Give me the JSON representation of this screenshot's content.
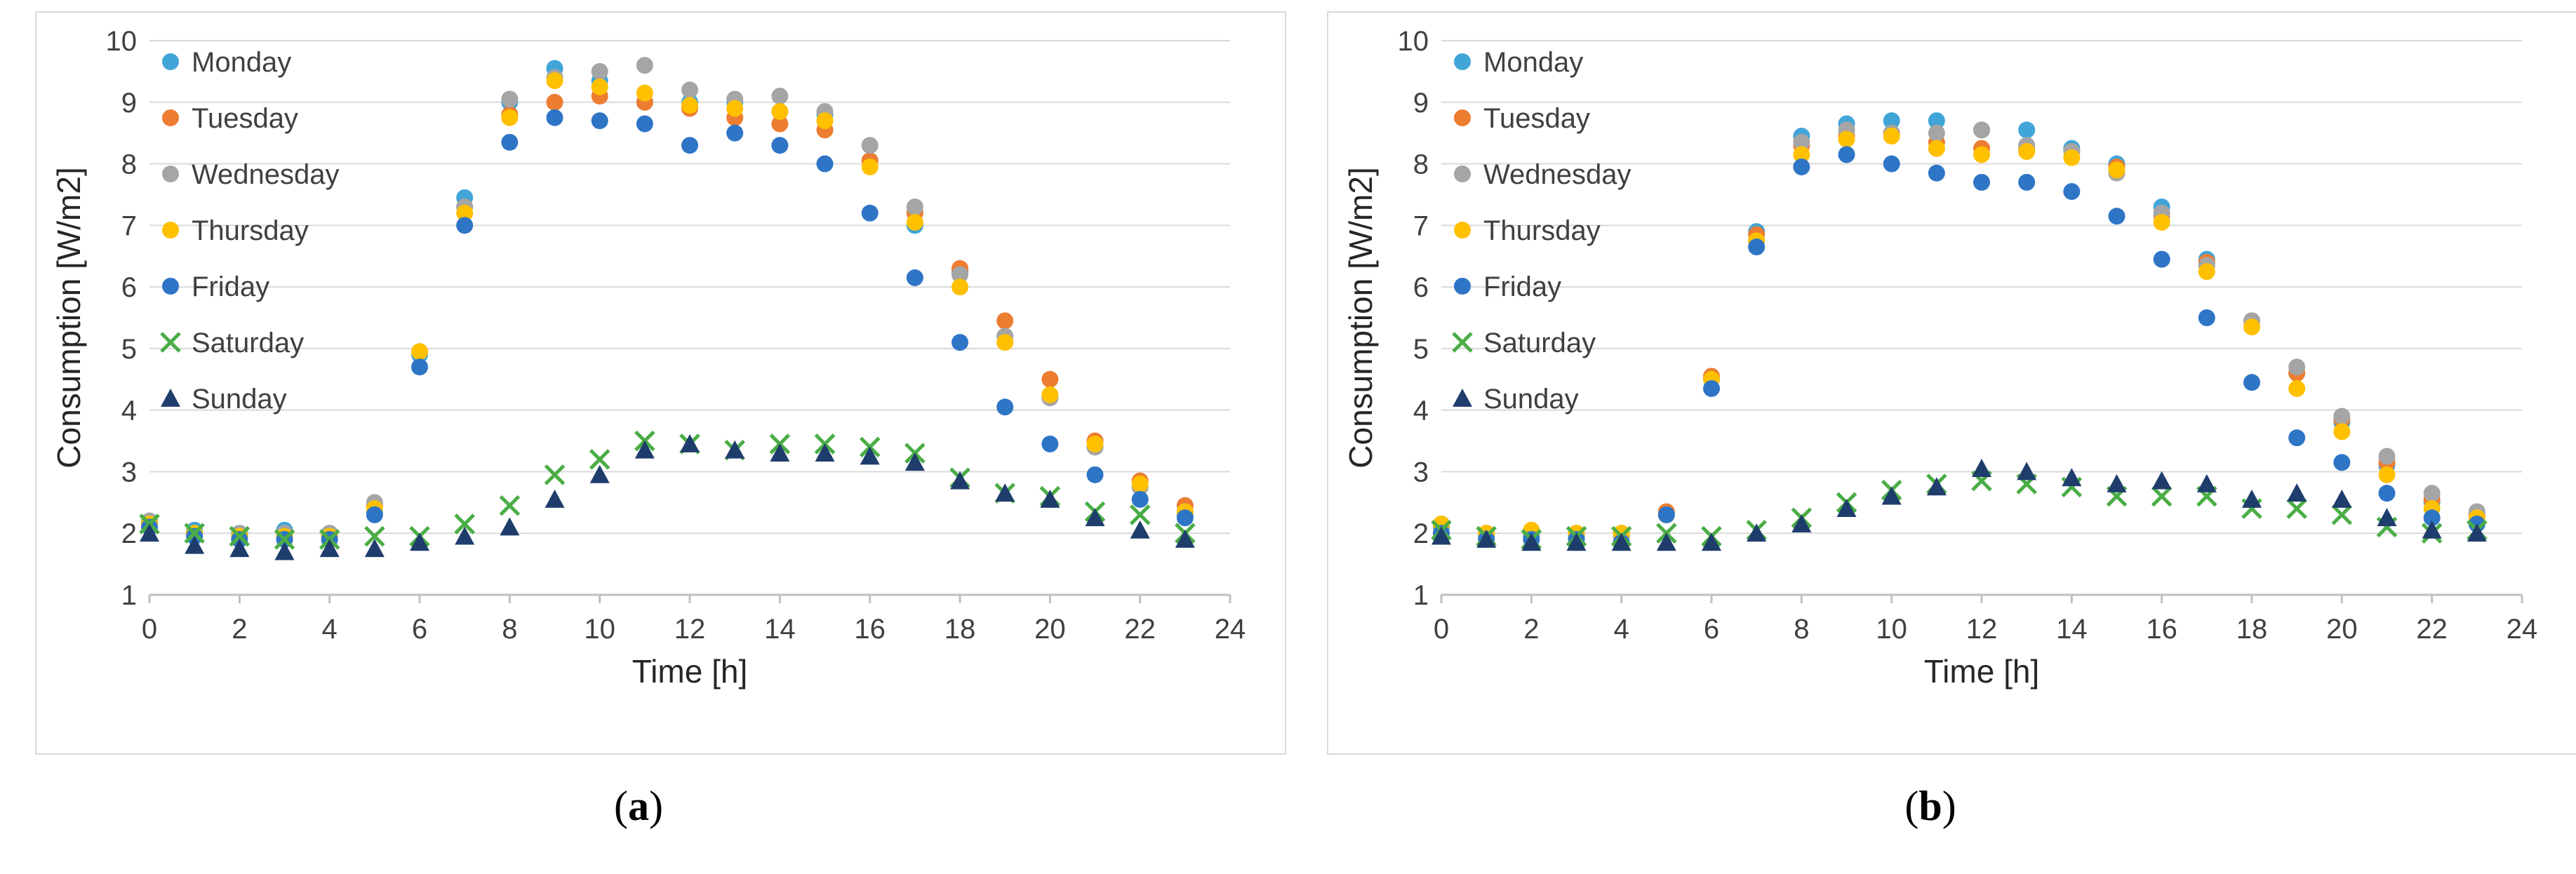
{
  "colors": {
    "Monday": "#41a5d8",
    "Tuesday": "#ed7d31",
    "Wednesday": "#a5a5a5",
    "Thursday": "#ffc000",
    "Friday": "#2e75c6",
    "Saturday": "#4aad45",
    "Sunday": "#1f3d6c",
    "grid": "#d9d9d9",
    "axis": "#bfbfbf"
  },
  "captions": [
    {
      "paren_open": "(",
      "letter": "a",
      "paren_close": ")"
    },
    {
      "paren_open": "(",
      "letter": "b",
      "paren_close": ")"
    }
  ],
  "chart_data": [
    {
      "type": "scatter",
      "title": "",
      "xlabel": "Time [h]",
      "ylabel": "Consumption [W/m2]",
      "xlim": [
        0,
        24
      ],
      "ylim": [
        1,
        10
      ],
      "xticks": [
        0,
        2,
        4,
        6,
        8,
        10,
        12,
        14,
        16,
        18,
        20,
        22,
        24
      ],
      "yticks": [
        1,
        2,
        3,
        4,
        5,
        6,
        7,
        8,
        9,
        10
      ],
      "grid": "horizontal",
      "legend": "top-left",
      "x": [
        0,
        1,
        2,
        3,
        4,
        5,
        6,
        7,
        8,
        9,
        10,
        11,
        12,
        13,
        14,
        15,
        16,
        17,
        18,
        19,
        20,
        21,
        22,
        23
      ],
      "series": [
        {
          "name": "Monday",
          "marker": "circle",
          "values": [
            2.2,
            2.05,
            2.0,
            2.05,
            2.0,
            2.35,
            4.9,
            7.45,
            9.0,
            9.55,
            9.35,
            9.0,
            9.0,
            9.0,
            8.85,
            8.8,
            8.05,
            7.0,
            6.25,
            5.2,
            4.2,
            3.4,
            2.75,
            2.3
          ]
        },
        {
          "name": "Tuesday",
          "marker": "circle",
          "values": [
            2.15,
            2.0,
            1.95,
            2.0,
            1.95,
            2.45,
            4.95,
            7.3,
            8.8,
            9.0,
            9.1,
            9.0,
            8.9,
            8.75,
            8.65,
            8.55,
            8.05,
            7.2,
            6.3,
            5.45,
            4.5,
            3.5,
            2.85,
            2.45
          ]
        },
        {
          "name": "Wednesday",
          "marker": "circle",
          "values": [
            2.2,
            2.0,
            2.0,
            2.0,
            2.0,
            2.5,
            4.95,
            7.3,
            9.05,
            9.4,
            9.5,
            9.6,
            9.2,
            9.05,
            9.1,
            8.85,
            8.3,
            7.3,
            6.2,
            5.2,
            4.2,
            3.4,
            2.75,
            2.35
          ]
        },
        {
          "name": "Thursday",
          "marker": "circle",
          "values": [
            2.15,
            2.0,
            1.95,
            1.95,
            1.95,
            2.4,
            4.95,
            7.2,
            8.75,
            9.35,
            9.25,
            9.15,
            8.95,
            8.9,
            8.85,
            8.7,
            7.95,
            7.05,
            6.0,
            5.1,
            4.25,
            3.45,
            2.8,
            2.35
          ]
        },
        {
          "name": "Friday",
          "marker": "circle",
          "values": [
            2.1,
            1.95,
            1.9,
            1.9,
            1.9,
            2.3,
            4.7,
            7.0,
            8.35,
            8.75,
            8.7,
            8.65,
            8.3,
            8.5,
            8.3,
            8.0,
            7.2,
            6.15,
            5.1,
            4.05,
            3.45,
            2.95,
            2.55,
            2.25
          ]
        },
        {
          "name": "Saturday",
          "marker": "cross",
          "values": [
            2.15,
            2.0,
            1.95,
            1.9,
            1.9,
            1.95,
            1.95,
            2.15,
            2.45,
            2.95,
            3.2,
            3.5,
            3.45,
            3.35,
            3.45,
            3.45,
            3.4,
            3.3,
            2.9,
            2.65,
            2.6,
            2.35,
            2.3,
            2.0
          ]
        },
        {
          "name": "Sunday",
          "marker": "triangle",
          "values": [
            2.0,
            1.8,
            1.75,
            1.7,
            1.75,
            1.75,
            1.85,
            1.95,
            2.1,
            2.55,
            2.95,
            3.35,
            3.45,
            3.35,
            3.3,
            3.3,
            3.25,
            3.15,
            2.85,
            2.65,
            2.55,
            2.25,
            2.05,
            1.9
          ]
        }
      ]
    },
    {
      "type": "scatter",
      "title": "",
      "xlabel": "Time [h]",
      "ylabel": "Consumption [W/m2]",
      "xlim": [
        0,
        24
      ],
      "ylim": [
        1,
        10
      ],
      "xticks": [
        0,
        2,
        4,
        6,
        8,
        10,
        12,
        14,
        16,
        18,
        20,
        22,
        24
      ],
      "yticks": [
        1,
        2,
        3,
        4,
        5,
        6,
        7,
        8,
        9,
        10
      ],
      "grid": "horizontal",
      "legend": "top-left",
      "x": [
        0,
        1,
        2,
        3,
        4,
        5,
        6,
        7,
        8,
        9,
        10,
        11,
        12,
        13,
        14,
        15,
        16,
        17,
        18,
        19,
        20,
        21,
        22,
        23
      ],
      "series": [
        {
          "name": "Monday",
          "marker": "circle",
          "values": [
            2.1,
            1.95,
            1.95,
            1.95,
            1.95,
            2.3,
            4.5,
            6.9,
            8.45,
            8.65,
            8.7,
            8.7,
            8.55,
            8.55,
            8.25,
            8.0,
            7.3,
            6.45,
            5.45,
            4.6,
            3.8,
            3.1,
            2.5,
            2.3
          ]
        },
        {
          "name": "Tuesday",
          "marker": "circle",
          "values": [
            2.15,
            2.0,
            2.0,
            2.0,
            2.0,
            2.35,
            4.55,
            6.85,
            8.3,
            8.45,
            8.5,
            8.35,
            8.25,
            8.25,
            8.2,
            7.95,
            7.15,
            6.4,
            5.45,
            4.6,
            3.85,
            3.15,
            2.55,
            2.3
          ]
        },
        {
          "name": "Wednesday",
          "marker": "circle",
          "values": [
            2.15,
            2.0,
            2.0,
            2.0,
            1.95,
            2.3,
            4.5,
            6.75,
            8.35,
            8.55,
            8.5,
            8.5,
            8.55,
            8.3,
            8.2,
            7.85,
            7.2,
            6.35,
            5.45,
            4.7,
            3.9,
            3.25,
            2.65,
            2.35
          ]
        },
        {
          "name": "Thursday",
          "marker": "circle",
          "values": [
            2.15,
            2.0,
            2.05,
            2.0,
            2.0,
            2.3,
            4.5,
            6.75,
            8.15,
            8.4,
            8.45,
            8.25,
            8.15,
            8.2,
            8.1,
            7.9,
            7.05,
            6.25,
            5.35,
            4.35,
            3.65,
            2.95,
            2.4,
            2.25
          ]
        },
        {
          "name": "Friday",
          "marker": "circle",
          "values": [
            2.0,
            1.9,
            1.9,
            1.9,
            1.85,
            2.3,
            4.35,
            6.65,
            7.95,
            8.15,
            8.0,
            7.85,
            7.7,
            7.7,
            7.55,
            7.15,
            6.45,
            5.5,
            4.45,
            3.55,
            3.15,
            2.65,
            2.25,
            2.15
          ]
        },
        {
          "name": "Saturday",
          "marker": "cross",
          "values": [
            2.05,
            1.95,
            1.9,
            1.95,
            1.95,
            2.0,
            1.95,
            2.05,
            2.25,
            2.5,
            2.7,
            2.8,
            2.85,
            2.8,
            2.75,
            2.6,
            2.6,
            2.6,
            2.4,
            2.4,
            2.3,
            2.1,
            2.0,
            2.05
          ]
        },
        {
          "name": "Sunday",
          "marker": "triangle",
          "values": [
            1.95,
            1.9,
            1.85,
            1.85,
            1.85,
            1.85,
            1.85,
            2.0,
            2.15,
            2.4,
            2.6,
            2.75,
            3.05,
            3.0,
            2.9,
            2.8,
            2.85,
            2.8,
            2.55,
            2.65,
            2.55,
            2.25,
            2.05,
            2.0
          ]
        }
      ]
    }
  ]
}
